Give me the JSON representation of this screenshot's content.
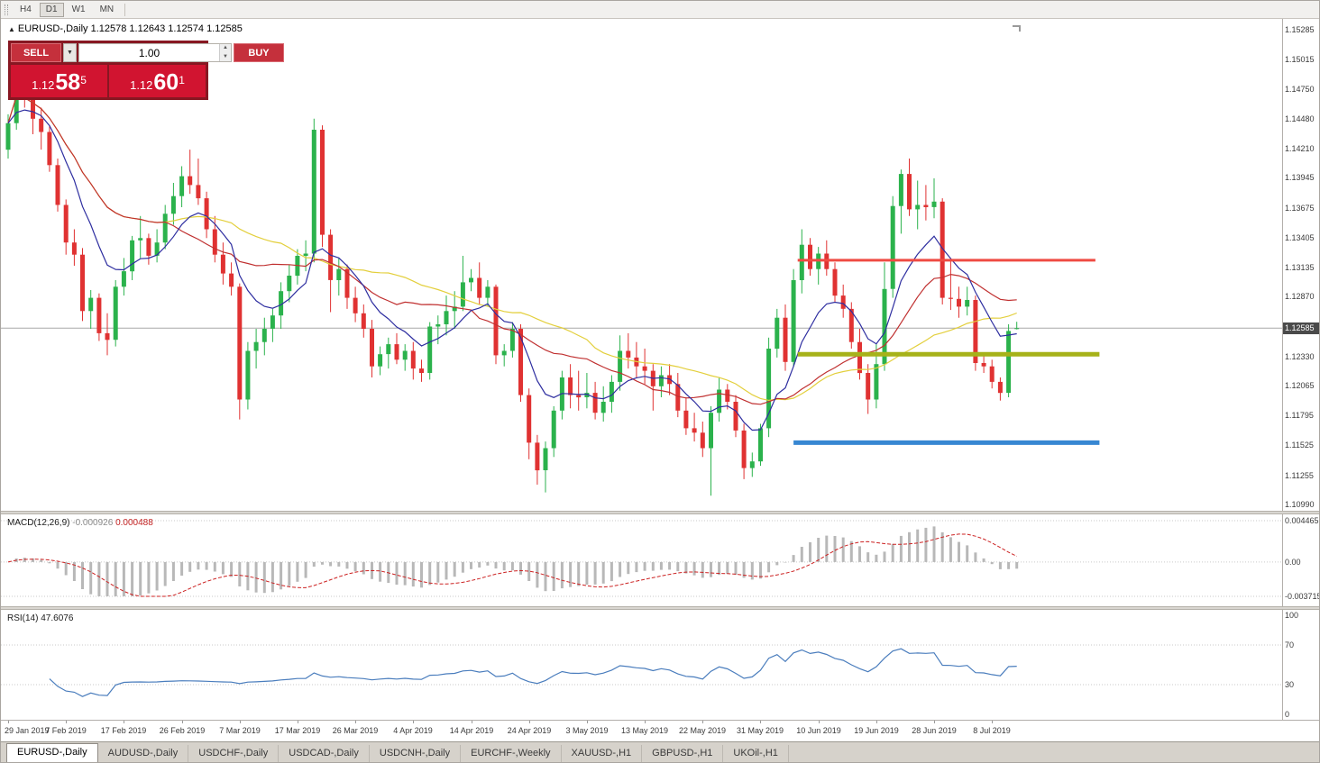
{
  "toolbar": {
    "timeframes": [
      {
        "label": "H4",
        "active": false
      },
      {
        "label": "D1",
        "active": true
      },
      {
        "label": "W1",
        "active": false
      },
      {
        "label": "MN",
        "active": false
      }
    ]
  },
  "icons": {
    "collapse": "▲",
    "dropdown": "▼",
    "spin_up": "▲",
    "spin_down": "▼"
  },
  "chart": {
    "title": "EURUSD-,Daily",
    "ohlc_text": "1.12578 1.12643 1.12574 1.12585"
  },
  "trade_panel": {
    "sell_label": "SELL",
    "buy_label": "BUY",
    "volume": "1.00",
    "sell_price": {
      "base": "1.12",
      "pips": "58",
      "pipette": "5"
    },
    "buy_price": {
      "base": "1.12",
      "pips": "60",
      "pipette": "1"
    }
  },
  "price_axis": {
    "ticks": [
      "1.15285",
      "1.15015",
      "1.14750",
      "1.14480",
      "1.14210",
      "1.13945",
      "1.13675",
      "1.13405",
      "1.13135",
      "1.12870",
      "1.12330",
      "1.12065",
      "1.11795",
      "1.11525",
      "1.11255",
      "1.10990"
    ],
    "current": "1.12585"
  },
  "macd": {
    "name": "MACD(12,26,9)",
    "value": "-0.000926",
    "signal": "0.000488",
    "axis": [
      {
        "label": "0.004465",
        "v": 0.004465
      },
      {
        "label": "0.00",
        "v": 0
      },
      {
        "label": "-0.0037150",
        "v": -0.003715
      }
    ],
    "scale_max": 0.004465,
    "scale_min": -0.003715,
    "fast": 12,
    "slow": 26,
    "signal_period": 9,
    "histogram_color": "#b8b8b8",
    "signal_color": "#cc2222"
  },
  "rsi": {
    "name": "RSI(14)",
    "value": "47.6076",
    "period": 14,
    "axis": [
      {
        "label": "100",
        "v": 100
      },
      {
        "label": "70",
        "v": 70
      },
      {
        "label": "30",
        "v": 30
      },
      {
        "label": "0",
        "v": 0
      }
    ],
    "levels": [
      70,
      30
    ],
    "line_color": "#4a7dbd"
  },
  "chart_data": {
    "type": "candlestick",
    "symbol": "EURUSD-",
    "timeframe": "Daily",
    "ylim": [
      1.1095,
      1.1535
    ],
    "current_price": 1.12585,
    "colors": {
      "up": "#2bb24c",
      "down": "#e03232",
      "current_line": "#a8a8a8"
    },
    "x_labels": [
      "29 Jan 2019",
      "7 Feb 2019",
      "17 Feb 2019",
      "26 Feb 2019",
      "7 Mar 2019",
      "17 Mar 2019",
      "26 Mar 2019",
      "4 Apr 2019",
      "14 Apr 2019",
      "24 Apr 2019",
      "3 May 2019",
      "13 May 2019",
      "22 May 2019",
      "31 May 2019",
      "10 Jun 2019",
      "19 Jun 2019",
      "28 Jun 2019",
      "8 Jul 2019"
    ],
    "x_label_step": 7,
    "overlays": [
      {
        "name": "ma-fast",
        "type": "ema",
        "period": 9,
        "color": "#2e2ea0"
      },
      {
        "name": "ma-mid",
        "type": "sma",
        "period": 20,
        "color": "#c03030"
      },
      {
        "name": "ma-slow",
        "type": "sma",
        "period": 34,
        "color": "#e3cf3c"
      }
    ],
    "hlines": [
      {
        "price": 1.132,
        "from": 95.5,
        "to": 131.5,
        "color": "#ef4b43",
        "width": 3
      },
      {
        "price": 1.1235,
        "from": 95.5,
        "to": 132,
        "color": "#a6b219",
        "width": 5
      },
      {
        "price": 1.1155,
        "from": 95,
        "to": 132,
        "color": "#3787d2",
        "width": 5
      }
    ],
    "candles": [
      [
        1.142,
        1.1452,
        1.1412,
        1.1444
      ],
      [
        1.1444,
        1.1502,
        1.1438,
        1.1492
      ],
      [
        1.1492,
        1.1515,
        1.1458,
        1.1465
      ],
      [
        1.1465,
        1.1489,
        1.1434,
        1.1448
      ],
      [
        1.1448,
        1.1458,
        1.142,
        1.1436
      ],
      [
        1.1436,
        1.1441,
        1.14,
        1.1406
      ],
      [
        1.1406,
        1.1412,
        1.1364,
        1.137
      ],
      [
        1.137,
        1.1375,
        1.1325,
        1.1336
      ],
      [
        1.1336,
        1.1348,
        1.1315,
        1.1325
      ],
      [
        1.1325,
        1.1331,
        1.1265,
        1.1274
      ],
      [
        1.1274,
        1.1293,
        1.1258,
        1.1286
      ],
      [
        1.1286,
        1.129,
        1.1247,
        1.1254
      ],
      [
        1.1254,
        1.1272,
        1.1234,
        1.1248
      ],
      [
        1.1248,
        1.1302,
        1.1242,
        1.1296
      ],
      [
        1.1296,
        1.1322,
        1.1288,
        1.131
      ],
      [
        1.131,
        1.1342,
        1.1302,
        1.1338
      ],
      [
        1.1338,
        1.136,
        1.1322,
        1.134
      ],
      [
        1.134,
        1.1344,
        1.1316,
        1.1324
      ],
      [
        1.1324,
        1.1348,
        1.1318,
        1.1336
      ],
      [
        1.1336,
        1.137,
        1.133,
        1.1362
      ],
      [
        1.1362,
        1.139,
        1.1352,
        1.1378
      ],
      [
        1.1378,
        1.1405,
        1.1368,
        1.1396
      ],
      [
        1.1396,
        1.142,
        1.138,
        1.1388
      ],
      [
        1.1388,
        1.1412,
        1.137,
        1.1376
      ],
      [
        1.1376,
        1.1382,
        1.134,
        1.1348
      ],
      [
        1.1348,
        1.136,
        1.1318,
        1.1325
      ],
      [
        1.1325,
        1.1336,
        1.1298,
        1.1308
      ],
      [
        1.1308,
        1.1318,
        1.1288,
        1.1296
      ],
      [
        1.1296,
        1.1299,
        1.1176,
        1.1194
      ],
      [
        1.1194,
        1.1246,
        1.1185,
        1.1238
      ],
      [
        1.1238,
        1.1258,
        1.1222,
        1.1246
      ],
      [
        1.1246,
        1.1268,
        1.1234,
        1.1258
      ],
      [
        1.1258,
        1.1276,
        1.1246,
        1.127
      ],
      [
        1.127,
        1.13,
        1.1258,
        1.1292
      ],
      [
        1.1292,
        1.1316,
        1.1282,
        1.1306
      ],
      [
        1.1306,
        1.133,
        1.1298,
        1.1324
      ],
      [
        1.1324,
        1.1338,
        1.131,
        1.1326
      ],
      [
        1.1326,
        1.1448,
        1.1318,
        1.1438
      ],
      [
        1.1438,
        1.1442,
        1.1332,
        1.1343
      ],
      [
        1.1343,
        1.1348,
        1.1273,
        1.1302
      ],
      [
        1.1302,
        1.1322,
        1.1288,
        1.1312
      ],
      [
        1.1312,
        1.1316,
        1.1276,
        1.1286
      ],
      [
        1.1286,
        1.1296,
        1.1264,
        1.1272
      ],
      [
        1.1272,
        1.128,
        1.125,
        1.1258
      ],
      [
        1.1258,
        1.1266,
        1.1214,
        1.1224
      ],
      [
        1.1224,
        1.1242,
        1.1216,
        1.1235
      ],
      [
        1.1235,
        1.125,
        1.1222,
        1.1244
      ],
      [
        1.1244,
        1.1254,
        1.1226,
        1.123
      ],
      [
        1.123,
        1.1244,
        1.122,
        1.1238
      ],
      [
        1.1238,
        1.1246,
        1.1212,
        1.1222
      ],
      [
        1.1222,
        1.123,
        1.121,
        1.1218
      ],
      [
        1.1218,
        1.1264,
        1.1212,
        1.126
      ],
      [
        1.126,
        1.127,
        1.1244,
        1.1262
      ],
      [
        1.1262,
        1.1288,
        1.1252,
        1.1274
      ],
      [
        1.1274,
        1.1292,
        1.1258,
        1.1278
      ],
      [
        1.1278,
        1.1324,
        1.1274,
        1.13
      ],
      [
        1.13,
        1.1312,
        1.1292,
        1.1304
      ],
      [
        1.1304,
        1.1318,
        1.128,
        1.1286
      ],
      [
        1.1286,
        1.1302,
        1.1278,
        1.1296
      ],
      [
        1.1296,
        1.1298,
        1.1226,
        1.1234
      ],
      [
        1.1234,
        1.1244,
        1.1224,
        1.1238
      ],
      [
        1.1238,
        1.1264,
        1.1232,
        1.1258
      ],
      [
        1.1258,
        1.1262,
        1.1192,
        1.1198
      ],
      [
        1.1198,
        1.1204,
        1.114,
        1.1155
      ],
      [
        1.1155,
        1.1162,
        1.1117,
        1.113
      ],
      [
        1.113,
        1.1156,
        1.111,
        1.115
      ],
      [
        1.115,
        1.1188,
        1.1142,
        1.1184
      ],
      [
        1.1184,
        1.122,
        1.1176,
        1.1214
      ],
      [
        1.1214,
        1.1226,
        1.1186,
        1.1198
      ],
      [
        1.1198,
        1.122,
        1.1184,
        1.1196
      ],
      [
        1.1196,
        1.1218,
        1.1186,
        1.12
      ],
      [
        1.12,
        1.121,
        1.1176,
        1.1182
      ],
      [
        1.1182,
        1.1206,
        1.1174,
        1.1192
      ],
      [
        1.1192,
        1.1216,
        1.1182,
        1.121
      ],
      [
        1.121,
        1.1252,
        1.1202,
        1.1238
      ],
      [
        1.1238,
        1.1254,
        1.1222,
        1.1232
      ],
      [
        1.1232,
        1.1246,
        1.1214,
        1.1224
      ],
      [
        1.1224,
        1.124,
        1.1208,
        1.122
      ],
      [
        1.122,
        1.1226,
        1.1184,
        1.1206
      ],
      [
        1.1206,
        1.1224,
        1.1196,
        1.1216
      ],
      [
        1.1216,
        1.1226,
        1.1198,
        1.1208
      ],
      [
        1.1208,
        1.1218,
        1.1178,
        1.1184
      ],
      [
        1.1184,
        1.1196,
        1.1162,
        1.1168
      ],
      [
        1.1168,
        1.1182,
        1.1156,
        1.1164
      ],
      [
        1.1164,
        1.1174,
        1.1142,
        1.115
      ],
      [
        1.115,
        1.1188,
        1.1107,
        1.1182
      ],
      [
        1.1182,
        1.1214,
        1.1174,
        1.1203
      ],
      [
        1.1203,
        1.1208,
        1.1185,
        1.1192
      ],
      [
        1.1192,
        1.1198,
        1.116,
        1.1166
      ],
      [
        1.1166,
        1.1172,
        1.1122,
        1.1132
      ],
      [
        1.1132,
        1.1146,
        1.1124,
        1.1138
      ],
      [
        1.1138,
        1.1172,
        1.1134,
        1.1168
      ],
      [
        1.1168,
        1.125,
        1.116,
        1.124
      ],
      [
        1.124,
        1.1276,
        1.1232,
        1.1268
      ],
      [
        1.1268,
        1.128,
        1.122,
        1.1228
      ],
      [
        1.1228,
        1.1312,
        1.1224,
        1.1302
      ],
      [
        1.1302,
        1.1348,
        1.129,
        1.1334
      ],
      [
        1.1334,
        1.134,
        1.1306,
        1.1312
      ],
      [
        1.1312,
        1.1332,
        1.1298,
        1.1326
      ],
      [
        1.1326,
        1.1338,
        1.1306,
        1.1312
      ],
      [
        1.1312,
        1.1318,
        1.1282,
        1.1288
      ],
      [
        1.1288,
        1.1298,
        1.1268,
        1.1276
      ],
      [
        1.1276,
        1.1282,
        1.124,
        1.1246
      ],
      [
        1.1246,
        1.1258,
        1.1212,
        1.1218
      ],
      [
        1.1218,
        1.1226,
        1.1181,
        1.1194
      ],
      [
        1.1194,
        1.1244,
        1.1186,
        1.1226
      ],
      [
        1.1226,
        1.1318,
        1.122,
        1.1294
      ],
      [
        1.1294,
        1.1378,
        1.1286,
        1.1369
      ],
      [
        1.1369,
        1.1402,
        1.1344,
        1.1398
      ],
      [
        1.1398,
        1.1412,
        1.136,
        1.1366
      ],
      [
        1.1366,
        1.1392,
        1.1348,
        1.137
      ],
      [
        1.137,
        1.1388,
        1.1356,
        1.1368
      ],
      [
        1.1368,
        1.1394,
        1.1358,
        1.1373
      ],
      [
        1.1373,
        1.1376,
        1.128,
        1.1286
      ],
      [
        1.1286,
        1.1322,
        1.1275,
        1.1285
      ],
      [
        1.1285,
        1.1296,
        1.1268,
        1.1278
      ],
      [
        1.1278,
        1.1296,
        1.127,
        1.1284
      ],
      [
        1.1284,
        1.1288,
        1.122,
        1.1227
      ],
      [
        1.1227,
        1.1234,
        1.1218,
        1.1224
      ],
      [
        1.1224,
        1.123,
        1.1204,
        1.121
      ],
      [
        1.121,
        1.1214,
        1.1193,
        1.12
      ],
      [
        1.12,
        1.1262,
        1.1196,
        1.1256
      ],
      [
        1.12578,
        1.12643,
        1.12574,
        1.12585
      ]
    ]
  },
  "tabs": [
    {
      "label": "EURUSD-,Daily",
      "active": true
    },
    {
      "label": "AUDUSD-,Daily",
      "active": false
    },
    {
      "label": "USDCHF-,Daily",
      "active": false
    },
    {
      "label": "USDCAD-,Daily",
      "active": false
    },
    {
      "label": "USDCNH-,Daily",
      "active": false
    },
    {
      "label": "EURCHF-,Weekly",
      "active": false
    },
    {
      "label": "XAUUSD-,H1",
      "active": false
    },
    {
      "label": "GBPUSD-,H1",
      "active": false
    },
    {
      "label": "UKOil-,H1",
      "active": false
    }
  ]
}
